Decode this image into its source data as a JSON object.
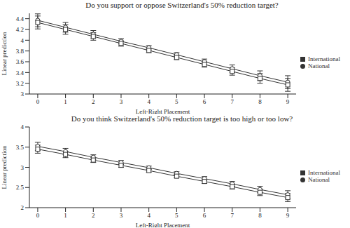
{
  "chart_data": [
    {
      "type": "line",
      "title": "Do you support or oppose Switzerland's 50% reduction target?",
      "x_label": "Left-Right Placement",
      "y_label": "Linear prediction",
      "x": [
        0,
        1,
        2,
        3,
        4,
        5,
        6,
        7,
        8,
        9
      ],
      "xlim": [
        -0.3,
        9.3
      ],
      "xticks": [
        0,
        1,
        2,
        3,
        4,
        5,
        6,
        7,
        8,
        9
      ],
      "ylim": [
        3,
        4.5
      ],
      "yticks": [
        3,
        3.2,
        3.4,
        3.6,
        3.8,
        4,
        4.2,
        4.4
      ],
      "grid": false,
      "legend": "right",
      "series": [
        {
          "name": "National",
          "color": "#333333",
          "marker": "circle",
          "values": [
            4.37,
            4.24,
            4.11,
            3.98,
            3.86,
            3.73,
            3.6,
            3.47,
            3.34,
            3.22
          ],
          "errors": [
            0.12,
            0.09,
            0.07,
            0.05,
            0.04,
            0.04,
            0.05,
            0.07,
            0.09,
            0.12
          ]
        },
        {
          "name": "International",
          "color": "#333333",
          "marker": "square",
          "values": [
            4.33,
            4.2,
            4.07,
            3.94,
            3.81,
            3.68,
            3.55,
            3.42,
            3.29,
            3.17
          ],
          "errors": [
            0.12,
            0.09,
            0.07,
            0.05,
            0.04,
            0.04,
            0.05,
            0.07,
            0.09,
            0.12
          ]
        }
      ]
    },
    {
      "type": "line",
      "title": "Do you think Switzerland's 50% reduction target is too high or too low?",
      "x_label": "Left-Right Placement",
      "y_label": "Linear prediction",
      "x": [
        0,
        1,
        2,
        3,
        4,
        5,
        6,
        7,
        8,
        9
      ],
      "xlim": [
        -0.3,
        9.3
      ],
      "xticks": [
        0,
        1,
        2,
        3,
        4,
        5,
        6,
        7,
        8,
        9
      ],
      "ylim": [
        2,
        4
      ],
      "yticks": [
        2,
        2.5,
        3,
        3.5,
        4
      ],
      "grid": false,
      "legend": "right",
      "series": [
        {
          "name": "National",
          "color": "#333333",
          "marker": "circle",
          "values": [
            3.52,
            3.39,
            3.25,
            3.12,
            2.99,
            2.85,
            2.72,
            2.59,
            2.45,
            2.32
          ],
          "errors": [
            0.1,
            0.08,
            0.06,
            0.05,
            0.04,
            0.04,
            0.05,
            0.06,
            0.08,
            0.1
          ]
        },
        {
          "name": "International",
          "color": "#333333",
          "marker": "square",
          "values": [
            3.45,
            3.32,
            3.18,
            3.05,
            2.92,
            2.78,
            2.65,
            2.52,
            2.38,
            2.25
          ],
          "errors": [
            0.1,
            0.08,
            0.06,
            0.05,
            0.04,
            0.04,
            0.05,
            0.06,
            0.08,
            0.1
          ]
        }
      ]
    }
  ]
}
